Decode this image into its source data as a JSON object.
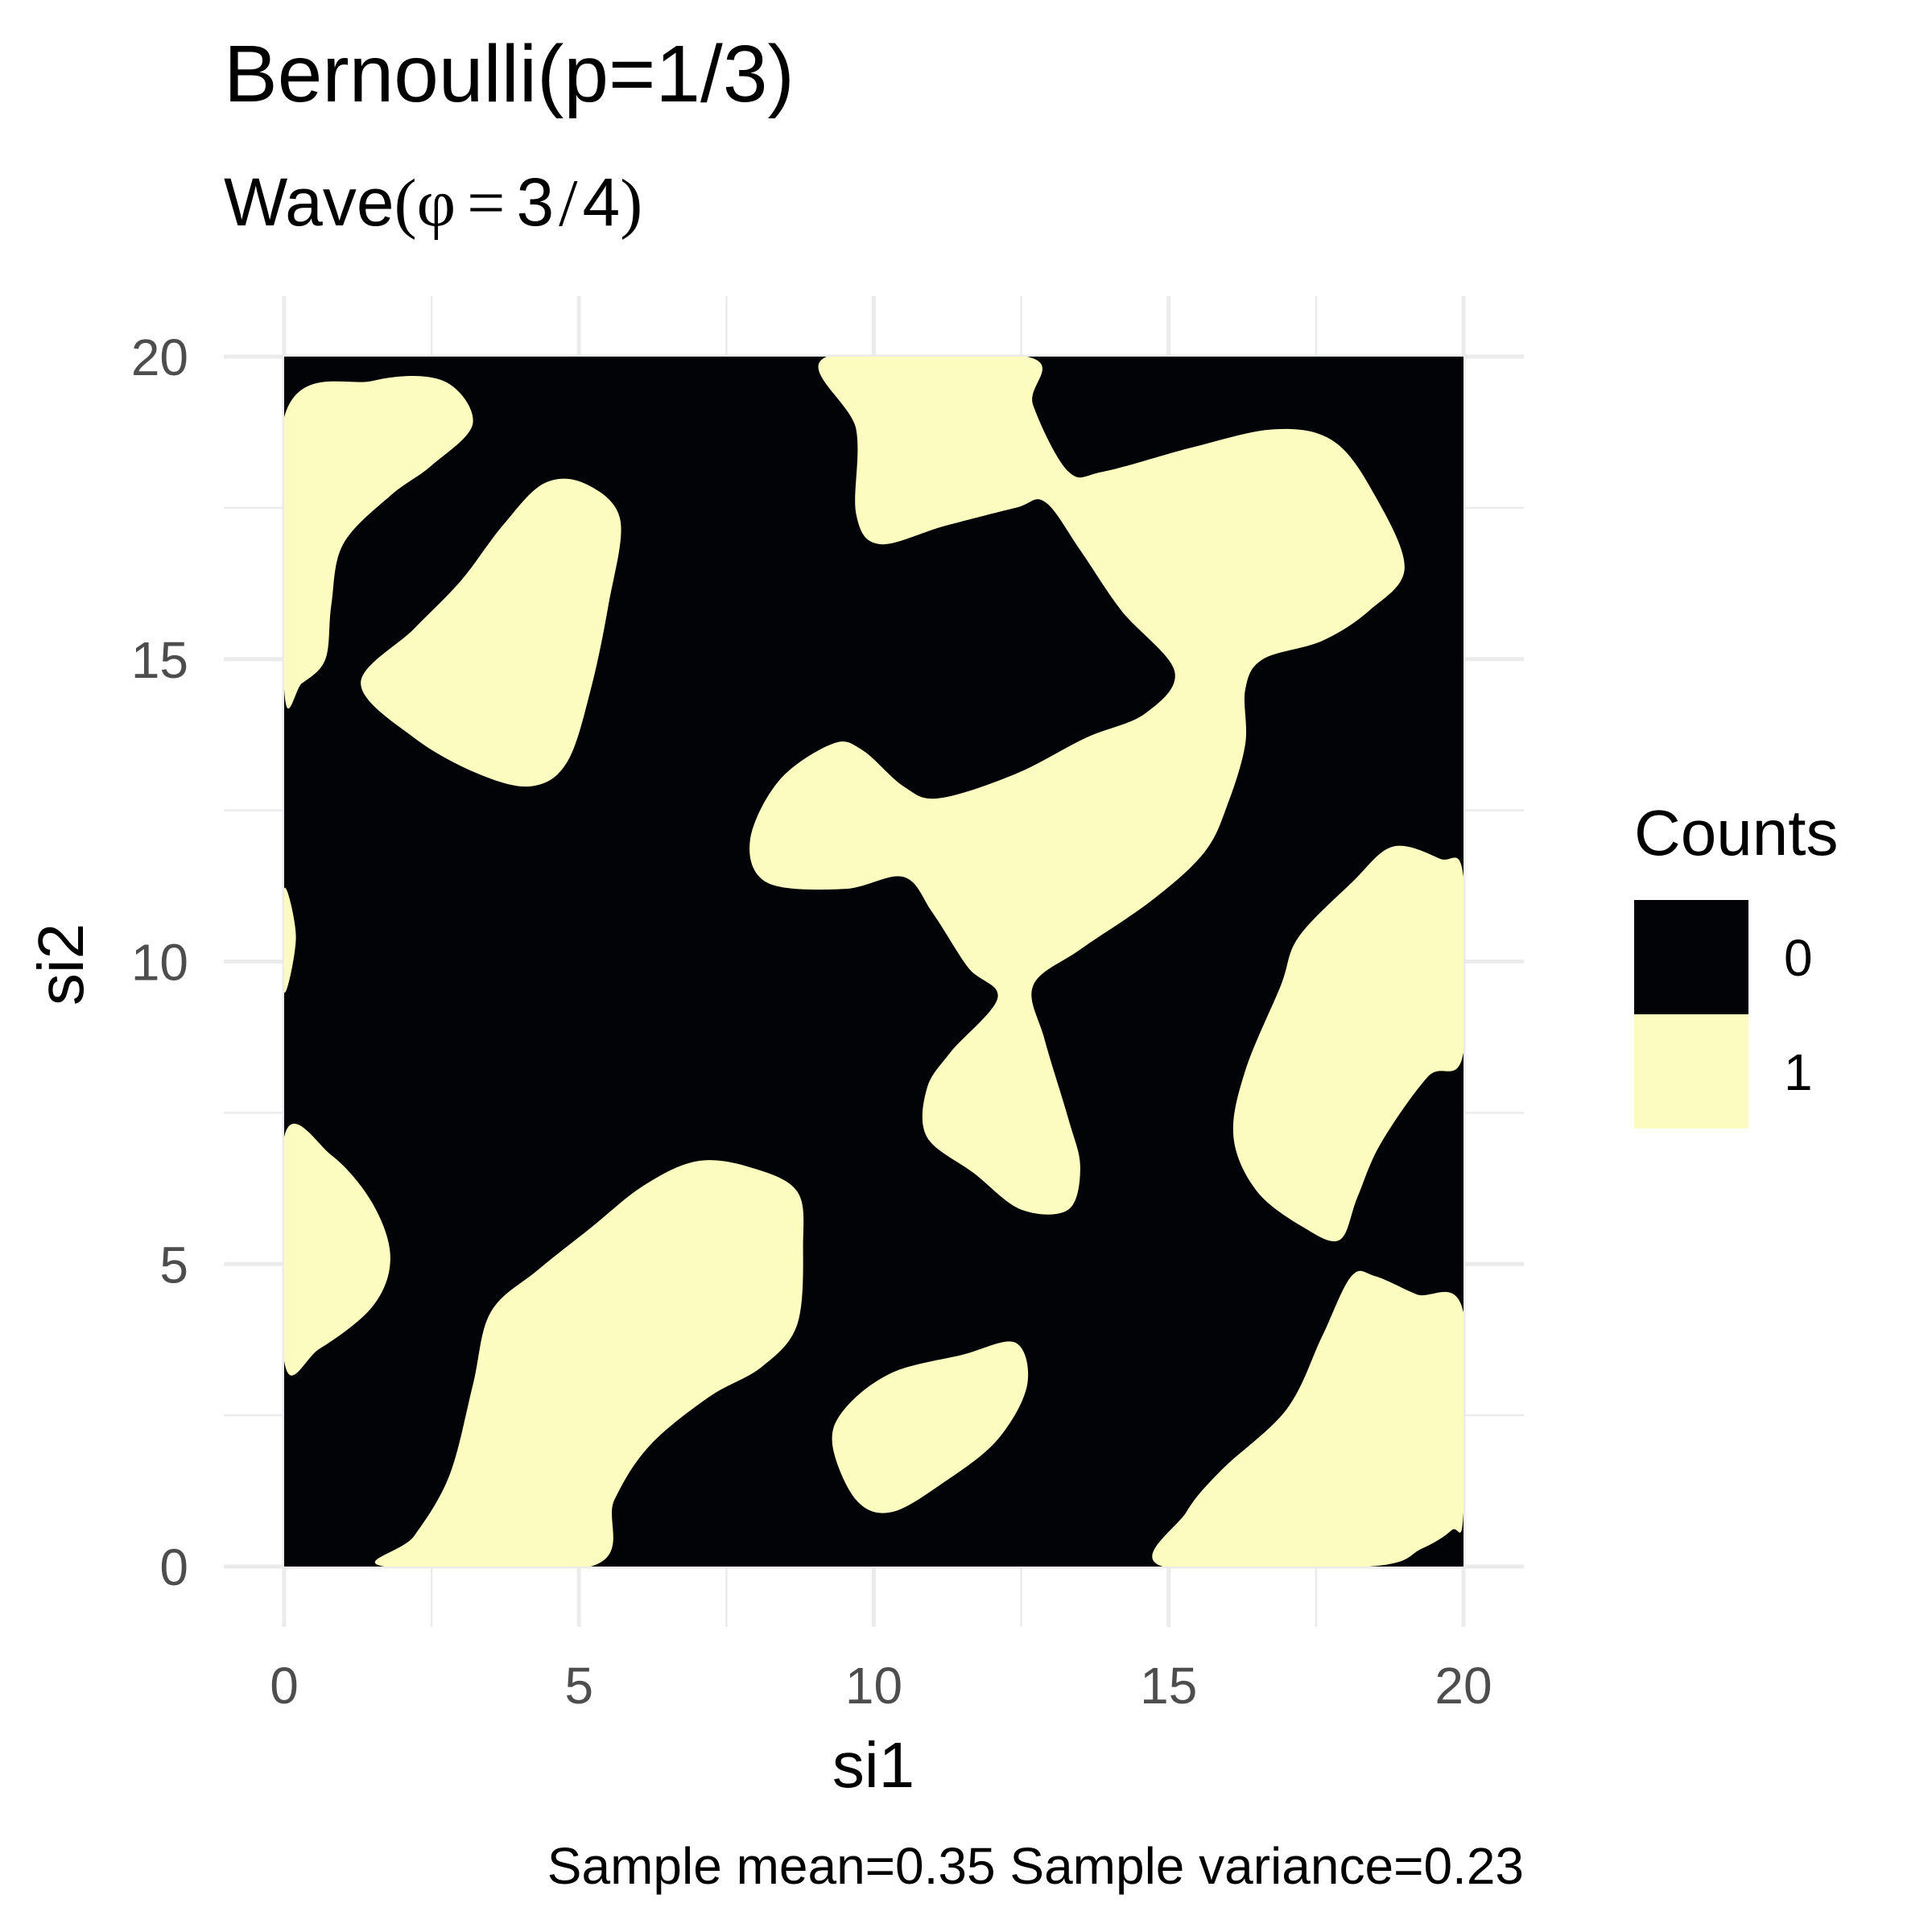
{
  "chart_data": {
    "type": "heatmap",
    "title": "Bernoulli(p=1/3)",
    "subtitle": {
      "prefix": "Wave",
      "open": "(",
      "phi": "φ",
      "eq": "=",
      "num": "3",
      "slash": "/",
      "den": "4",
      "close": ")"
    },
    "xlabel": "si1",
    "ylabel": "si2",
    "xlim": [
      0,
      20
    ],
    "ylim": [
      0,
      20
    ],
    "x_ticks": [
      0,
      5,
      10,
      15,
      20
    ],
    "y_ticks": [
      0,
      5,
      10,
      15,
      20
    ],
    "x_tick_labels": [
      "0",
      "5",
      "10",
      "15",
      "20"
    ],
    "y_tick_labels": [
      "0",
      "5",
      "10",
      "15",
      "20"
    ],
    "grid": true,
    "legend": {
      "title": "Counts",
      "placement": "right",
      "entries": [
        {
          "label": "0",
          "color": "#020306"
        },
        {
          "label": "1",
          "color": "#FCFCC0"
        }
      ]
    },
    "background_value": 0,
    "regions_value_1": [
      [
        [
          0,
          19.0
        ],
        [
          1.5,
          19.6
        ],
        [
          2.7,
          19.6
        ],
        [
          3.2,
          18.9
        ],
        [
          2.5,
          18.2
        ],
        [
          1.8,
          17.7
        ],
        [
          1.0,
          16.9
        ],
        [
          0.8,
          15.9
        ],
        [
          0.7,
          15.0
        ],
        [
          0.3,
          14.6
        ],
        [
          0,
          14.5
        ]
      ],
      [
        [
          3.7,
          17.2
        ],
        [
          4.4,
          17.9
        ],
        [
          5.1,
          17.9
        ],
        [
          5.7,
          17.3
        ],
        [
          5.5,
          15.9
        ],
        [
          5.2,
          14.5
        ],
        [
          4.8,
          13.3
        ],
        [
          4.2,
          12.9
        ],
        [
          3.3,
          13.1
        ],
        [
          2.2,
          13.7
        ],
        [
          1.3,
          14.6
        ],
        [
          2.2,
          15.5
        ],
        [
          3.0,
          16.3
        ]
      ],
      [
        [
          0,
          11.2
        ],
        [
          0.2,
          10.4
        ],
        [
          0,
          9.5
        ]
      ],
      [
        [
          9.2,
          20
        ],
        [
          9.7,
          18.8
        ],
        [
          9.7,
          17.4
        ],
        [
          10.1,
          16.9
        ],
        [
          11.2,
          17.2
        ],
        [
          12.4,
          17.5
        ],
        [
          12.9,
          17.6
        ],
        [
          13.5,
          16.8
        ],
        [
          14.2,
          15.8
        ],
        [
          15.1,
          14.8
        ],
        [
          14.6,
          14.1
        ],
        [
          13.6,
          13.7
        ],
        [
          12.4,
          13.1
        ],
        [
          11.1,
          12.7
        ],
        [
          10.5,
          12.9
        ],
        [
          9.8,
          13.5
        ],
        [
          9.3,
          13.6
        ],
        [
          8.4,
          13.0
        ],
        [
          7.9,
          12.0
        ],
        [
          8.2,
          11.3
        ],
        [
          9.5,
          11.2
        ],
        [
          10.5,
          11.4
        ],
        [
          11.0,
          10.8
        ],
        [
          11.6,
          9.9
        ],
        [
          12.1,
          9.4
        ],
        [
          11.3,
          8.5
        ],
        [
          10.9,
          7.9
        ],
        [
          10.9,
          7.1
        ],
        [
          11.7,
          6.5
        ],
        [
          12.5,
          5.9
        ],
        [
          13.3,
          5.9
        ],
        [
          13.5,
          6.6
        ],
        [
          13.3,
          7.4
        ],
        [
          12.9,
          8.7
        ],
        [
          12.7,
          9.6
        ],
        [
          13.5,
          10.2
        ],
        [
          14.7,
          11.0
        ],
        [
          15.6,
          11.8
        ],
        [
          16.0,
          12.6
        ],
        [
          16.3,
          13.6
        ],
        [
          16.3,
          14.5
        ],
        [
          16.6,
          15.0
        ],
        [
          17.6,
          15.3
        ],
        [
          18.4,
          15.8
        ],
        [
          19.0,
          16.5
        ],
        [
          18.5,
          17.7
        ],
        [
          17.8,
          18.6
        ],
        [
          16.8,
          18.8
        ],
        [
          15.4,
          18.5
        ],
        [
          13.9,
          18.1
        ],
        [
          13.3,
          18.1
        ],
        [
          12.7,
          19.2
        ],
        [
          12.6,
          20
        ]
      ],
      [
        [
          0,
          7.1
        ],
        [
          0.8,
          6.8
        ],
        [
          1.5,
          6.0
        ],
        [
          1.8,
          5.1
        ],
        [
          1.5,
          4.3
        ],
        [
          0.6,
          3.6
        ],
        [
          0,
          3.4
        ]
      ],
      [
        [
          3.5,
          4.2
        ],
        [
          4.3,
          4.9
        ],
        [
          5.2,
          5.6
        ],
        [
          6.1,
          6.3
        ],
        [
          7.0,
          6.7
        ],
        [
          7.9,
          6.6
        ],
        [
          8.7,
          6.2
        ],
        [
          8.8,
          5.3
        ],
        [
          8.7,
          4.0
        ],
        [
          8.1,
          3.3
        ],
        [
          7.2,
          2.8
        ],
        [
          6.2,
          2.0
        ],
        [
          5.6,
          1.1
        ],
        [
          5.2,
          0
        ],
        [
          1.7,
          0
        ],
        [
          2.2,
          0.5
        ],
        [
          2.8,
          1.5
        ],
        [
          3.2,
          3.0
        ]
      ],
      [
        [
          9.5,
          2.6
        ],
        [
          10.3,
          3.2
        ],
        [
          11.5,
          3.5
        ],
        [
          12.4,
          3.7
        ],
        [
          12.6,
          3.0
        ],
        [
          12.1,
          2.1
        ],
        [
          11.2,
          1.4
        ],
        [
          10.3,
          0.9
        ],
        [
          9.7,
          1.1
        ],
        [
          9.3,
          2.0
        ]
      ],
      [
        [
          18.1,
          11.3
        ],
        [
          18.8,
          11.9
        ],
        [
          19.6,
          11.7
        ],
        [
          20,
          11.4
        ],
        [
          20,
          8.5
        ],
        [
          19.4,
          8.1
        ],
        [
          18.6,
          7.0
        ],
        [
          18.2,
          6.1
        ],
        [
          17.9,
          5.4
        ],
        [
          17.3,
          5.6
        ],
        [
          16.5,
          6.2
        ],
        [
          16.1,
          7.1
        ],
        [
          16.3,
          8.2
        ],
        [
          16.9,
          9.6
        ],
        [
          17.2,
          10.4
        ]
      ],
      [
        [
          18.1,
          4.8
        ],
        [
          17.6,
          3.8
        ],
        [
          17.0,
          2.6
        ],
        [
          15.9,
          1.6
        ],
        [
          15.3,
          0.9
        ],
        [
          14.9,
          0
        ],
        [
          18.4,
          0
        ],
        [
          19.3,
          0.3
        ],
        [
          19.8,
          0.6
        ],
        [
          20,
          0.9
        ],
        [
          20,
          4.2
        ],
        [
          19.2,
          4.5
        ],
        [
          18.5,
          4.8
        ]
      ]
    ],
    "caption": "Sample mean=0.35 Sample variance=0.23"
  }
}
